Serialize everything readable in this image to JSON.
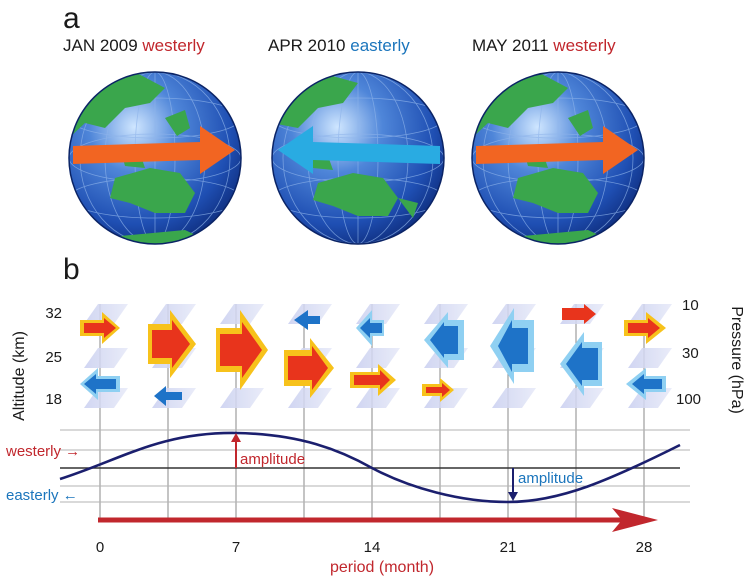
{
  "panel_a": {
    "letter": "a",
    "globes": [
      {
        "date": "JAN 2009",
        "wind": "westerly",
        "direction": "right",
        "arrow_color": "#f26522"
      },
      {
        "date": "APR 2010",
        "wind": "easterly",
        "direction": "left",
        "arrow_color": "#29abe2"
      },
      {
        "date": "MAY 2011",
        "wind": "westerly",
        "direction": "right",
        "arrow_color": "#f26522"
      }
    ]
  },
  "panel_b": {
    "letter": "b",
    "altitude_axis": {
      "label": "Altitude (km)",
      "ticks": [
        "32",
        "25",
        "18"
      ]
    },
    "pressure_axis": {
      "label": "Pressure (hPa)",
      "ticks": [
        "10",
        "30",
        "100"
      ]
    },
    "wave": {
      "westerly_label": "westerly →",
      "easterly_label": "easterly ←",
      "amplitude_label": "amplitude",
      "x_ticks": [
        "0",
        "7",
        "14",
        "21",
        "28"
      ],
      "x_label": "period (month)",
      "period_months": 28
    },
    "colors": {
      "westerly": "#c1272d",
      "easterly": "#1b75bc",
      "curve": "#1b1f6e"
    }
  }
}
